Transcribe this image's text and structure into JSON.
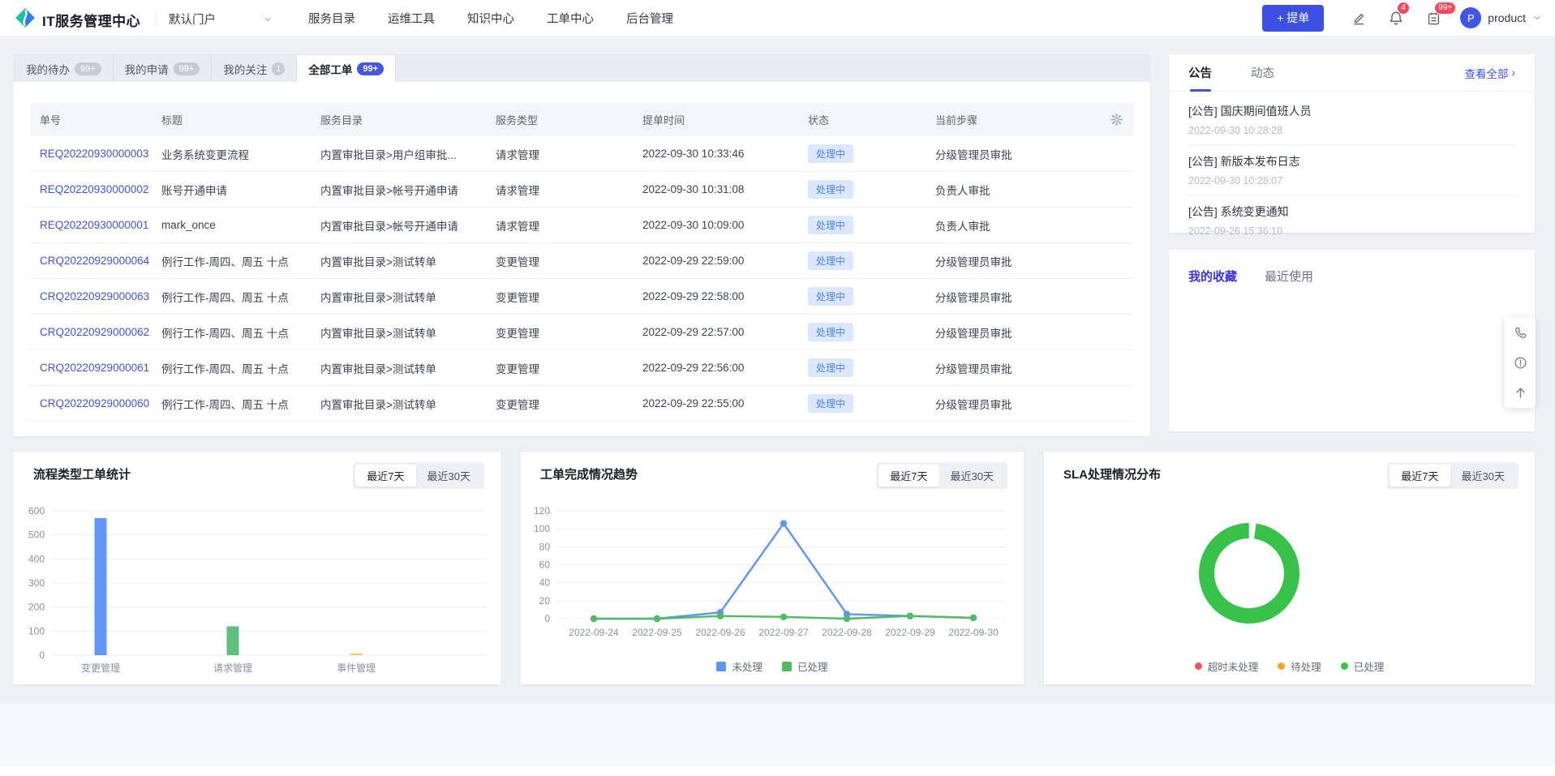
{
  "navbar": {
    "app_title": "IT服务管理中心",
    "portal_selector": "默认门户",
    "menu": [
      "服务目录",
      "运维工具",
      "知识中心",
      "工单中心",
      "后台管理"
    ],
    "submit_button": "+ 提单",
    "notification_badge": "4",
    "todo_badge": "99+",
    "user_initial": "P",
    "user_name": "product"
  },
  "tabs": [
    {
      "label": "我的待办",
      "badge": "99+"
    },
    {
      "label": "我的申请",
      "badge": "99+"
    },
    {
      "label": "我的关注",
      "badge": "1"
    },
    {
      "label": "全部工单",
      "badge": "99+"
    }
  ],
  "table": {
    "columns": [
      "单号",
      "标题",
      "服务目录",
      "服务类型",
      "提单时间",
      "状态",
      "当前步骤"
    ],
    "rows": [
      {
        "id": "REQ20220930000003",
        "title": "业务系统变更流程",
        "catalog": "内置审批目录>用户组审批...",
        "type": "请求管理",
        "time": "2022-09-30 10:33:46",
        "status": "处理中",
        "step": "分级管理员审批"
      },
      {
        "id": "REQ20220930000002",
        "title": "账号开通申请",
        "catalog": "内置审批目录>帐号开通申请",
        "type": "请求管理",
        "time": "2022-09-30 10:31:08",
        "status": "处理中",
        "step": "负责人审批"
      },
      {
        "id": "REQ20220930000001",
        "title": "mark_once",
        "catalog": "内置审批目录>帐号开通申请",
        "type": "请求管理",
        "time": "2022-09-30 10:09:00",
        "status": "处理中",
        "step": "负责人审批"
      },
      {
        "id": "CRQ20220929000064",
        "title": "例行工作-周四、周五 十点",
        "catalog": "内置审批目录>测试转单",
        "type": "变更管理",
        "time": "2022-09-29 22:59:00",
        "status": "处理中",
        "step": "分级管理员审批"
      },
      {
        "id": "CRQ20220929000063",
        "title": "例行工作-周四、周五 十点",
        "catalog": "内置审批目录>测试转单",
        "type": "变更管理",
        "time": "2022-09-29 22:58:00",
        "status": "处理中",
        "step": "分级管理员审批"
      },
      {
        "id": "CRQ20220929000062",
        "title": "例行工作-周四、周五 十点",
        "catalog": "内置审批目录>测试转单",
        "type": "变更管理",
        "time": "2022-09-29 22:57:00",
        "status": "处理中",
        "step": "分级管理员审批"
      },
      {
        "id": "CRQ20220929000061",
        "title": "例行工作-周四、周五 十点",
        "catalog": "内置审批目录>测试转单",
        "type": "变更管理",
        "time": "2022-09-29 22:56:00",
        "status": "处理中",
        "step": "分级管理员审批"
      },
      {
        "id": "CRQ20220929000060",
        "title": "例行工作-周四、周五 十点",
        "catalog": "内置审批目录>测试转单",
        "type": "变更管理",
        "time": "2022-09-29 22:55:00",
        "status": "处理中",
        "step": "分级管理员审批"
      }
    ]
  },
  "announcements": {
    "tab_active": "公告",
    "tab_inactive": "动态",
    "view_all": "查看全部",
    "items": [
      {
        "title": "[公告] 国庆期间值班人员",
        "time": "2022-09-30 10:28:28"
      },
      {
        "title": "[公告] 新版本发布日志",
        "time": "2022-09-30 10:28:07"
      },
      {
        "title": "[公告] 系统变更通知",
        "time": "2022-09-26 15:36:10"
      }
    ]
  },
  "favorites": {
    "tab_active": "我的收藏",
    "tab_inactive": "最近使用"
  },
  "side_toolbar": {
    "icons": [
      "phone-icon",
      "exclamation-circle-icon",
      "back-to-top-icon"
    ]
  },
  "colors": {
    "accent": "#4153e0",
    "button": "#3d50e3",
    "status_bg": "#dbe7fc",
    "status_text": "#4d7ef2",
    "badge_red": "#f5495f"
  },
  "chart_data": [
    {
      "type": "bar",
      "title": "流程类型工单统计",
      "ranges": [
        "最近7天",
        "最近30天"
      ],
      "active_range": "最近7天",
      "categories": [
        "变更管理",
        "请求管理",
        "事件管理"
      ],
      "values": [
        570,
        120,
        5
      ],
      "colors": [
        "#6296f9",
        "#5ec07e",
        "#f6c65b"
      ],
      "xlabel": "",
      "ylabel": "",
      "ylim": [
        0,
        600
      ],
      "yticks": [
        0,
        100,
        200,
        300,
        400,
        500,
        600
      ],
      "grid": true,
      "legend_position": "none"
    },
    {
      "type": "line",
      "title": "工单完成情况趋势",
      "ranges": [
        "最近7天",
        "最近30天"
      ],
      "active_range": "最近7天",
      "x": [
        "2022-09-24",
        "2022-09-25",
        "2022-09-26",
        "2022-09-27",
        "2022-09-28",
        "2022-09-29",
        "2022-09-30"
      ],
      "series": [
        {
          "name": "未处理",
          "color": "#5f93f5",
          "values": [
            0,
            0,
            7,
            106,
            5,
            3,
            1
          ]
        },
        {
          "name": "已处理",
          "color": "#4fbc63",
          "values": [
            0,
            0,
            3,
            2,
            0,
            3,
            1
          ]
        }
      ],
      "ylim": [
        0,
        120
      ],
      "yticks": [
        0,
        20,
        40,
        60,
        80,
        100,
        120
      ],
      "grid": true,
      "legend_position": "bottom"
    },
    {
      "type": "pie",
      "title": "SLA处理情况分布",
      "ranges": [
        "最近7天",
        "最近30天"
      ],
      "active_range": "最近7天",
      "donut": true,
      "categories": [
        "超时未处理",
        "待处理",
        "已处理"
      ],
      "values": [
        0,
        0,
        100
      ],
      "colors": [
        "#f6525f",
        "#f7a42e",
        "#38c24c"
      ],
      "legend_position": "bottom"
    }
  ]
}
